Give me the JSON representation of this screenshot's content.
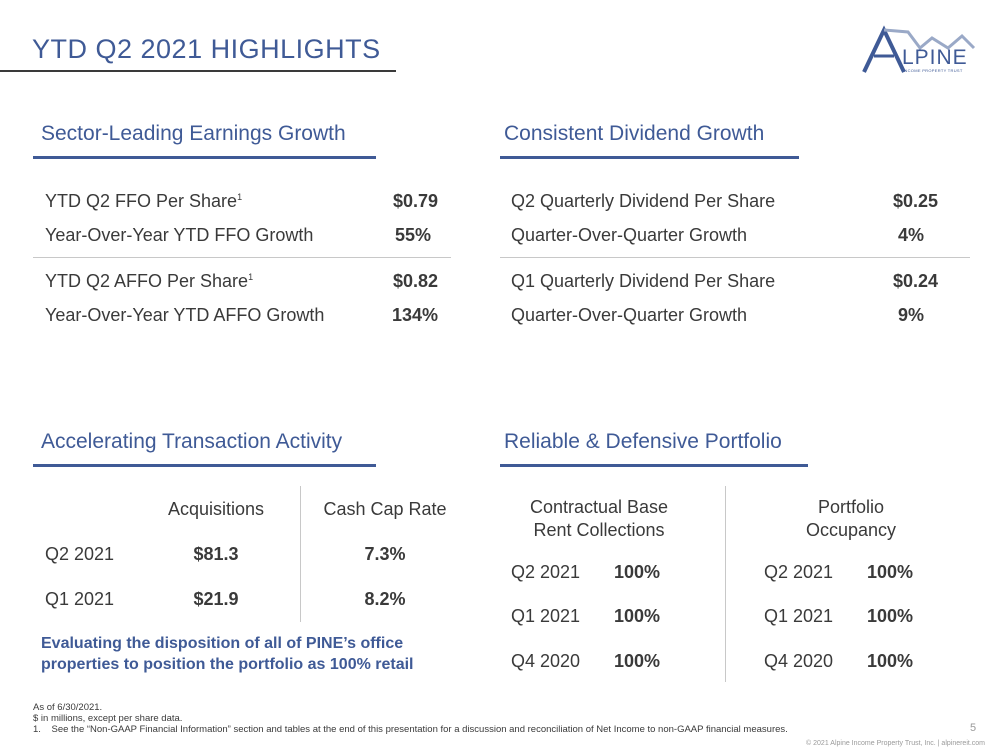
{
  "header": {
    "title": "YTD Q2 2021 HIGHLIGHTS",
    "logo_text": "LPINE",
    "logo_sub": "INCOME PROPERTY TRUST"
  },
  "earnings": {
    "title": "Sector-Leading Earnings Growth",
    "rows": [
      {
        "label": "YTD Q2 FFO Per Share",
        "sup": "1",
        "value": "$0.79"
      },
      {
        "label": "Year-Over-Year YTD FFO Growth",
        "sup": "",
        "value": "55%"
      },
      {
        "label": "YTD Q2 AFFO Per Share",
        "sup": "1",
        "value": "$0.82"
      },
      {
        "label": "Year-Over-Year YTD AFFO Growth",
        "sup": "",
        "value": "134%"
      }
    ]
  },
  "dividend": {
    "title": "Consistent Dividend Growth",
    "rows": [
      {
        "label": "Q2 Quarterly Dividend Per Share",
        "value": "$0.25"
      },
      {
        "label": "Quarter-Over-Quarter Growth",
        "value": "4%"
      },
      {
        "label": "Q1 Quarterly Dividend Per Share",
        "value": "$0.24"
      },
      {
        "label": "Quarter-Over-Quarter Growth",
        "value": "9%"
      }
    ]
  },
  "transactions": {
    "title": "Accelerating Transaction Activity",
    "col1": "Acquisitions",
    "col2": "Cash Cap Rate",
    "rows": [
      {
        "period": "Q2 2021",
        "acq": "$81.3",
        "rate": "7.3%"
      },
      {
        "period": "Q1 2021",
        "acq": "$21.9",
        "rate": "8.2%"
      }
    ],
    "note": "Evaluating the disposition of all of PINE’s office properties to position the portfolio as 100% retail"
  },
  "portfolio": {
    "title": "Reliable & Defensive Portfolio",
    "left_head_1": "Contractual Base",
    "left_head_2": "Rent Collections",
    "right_head_1": "Portfolio",
    "right_head_2": "Occupancy",
    "left_rows": [
      {
        "period": "Q2 2021",
        "value": "100%"
      },
      {
        "period": "Q1 2021",
        "value": "100%"
      },
      {
        "period": "Q4 2020",
        "value": "100%"
      }
    ],
    "right_rows": [
      {
        "period": "Q2 2021",
        "value": "100%"
      },
      {
        "period": "Q1 2021",
        "value": "100%"
      },
      {
        "period": "Q4 2020",
        "value": "100%"
      }
    ]
  },
  "footer": {
    "line1": "As of 6/30/2021.",
    "line2": "$ in millions, except per share data.",
    "line3": "1.    See the “Non-GAAP Financial Information” section and tables at the end of this presentation for a discussion and reconciliation of Net Income to non-GAAP financial measures.",
    "page_number": "5",
    "copyright": "© 2021 Alpine Income Property Trust, Inc.  |  alpinereit.com"
  }
}
